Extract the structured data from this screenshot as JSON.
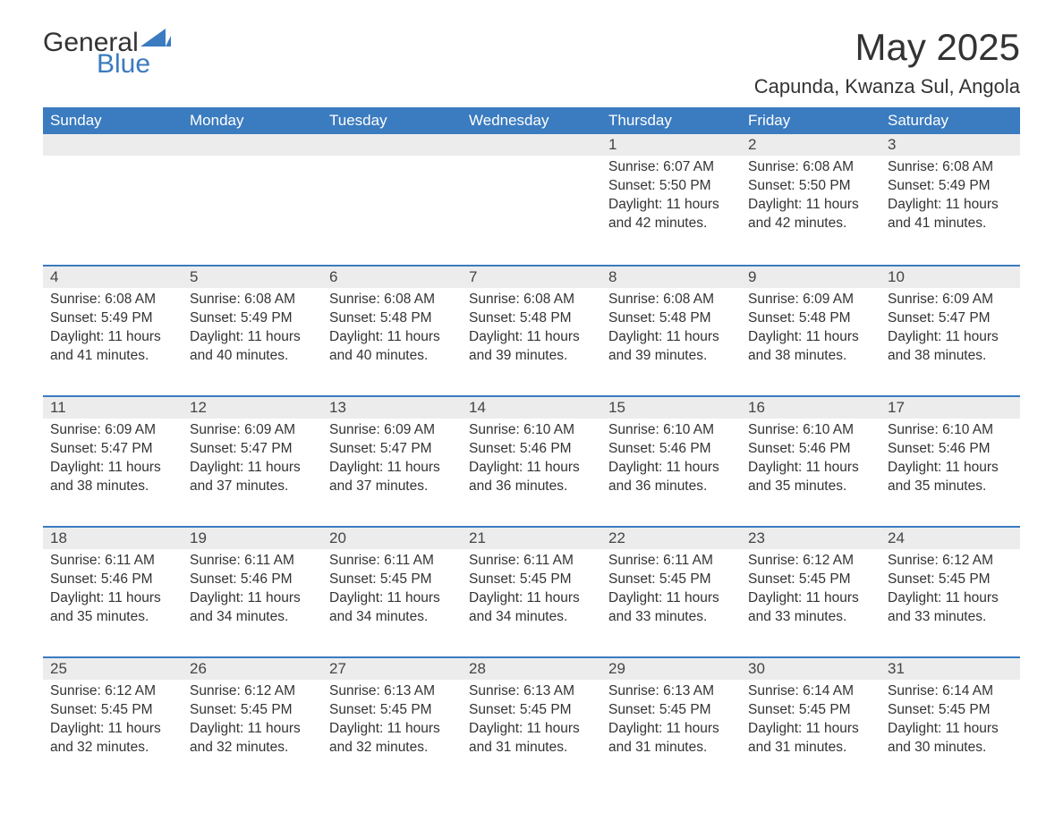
{
  "logo": {
    "text1": "General",
    "text2": "Blue",
    "icon_color": "#3b7bbf"
  },
  "title": "May 2025",
  "subtitle": "Capunda, Kwanza Sul, Angola",
  "colors": {
    "header_bg": "#3b7bbf",
    "header_text": "#ffffff",
    "day_head_bg": "#ececec",
    "day_head_border": "#3b7bbf",
    "body_text": "#333333",
    "background": "#ffffff"
  },
  "typography": {
    "font_family": "Segoe UI, Arial, sans-serif",
    "title_fontsize": 42,
    "subtitle_fontsize": 22,
    "header_fontsize": 17,
    "daynum_fontsize": 17,
    "body_fontsize": 15.5
  },
  "weekdays": [
    "Sunday",
    "Monday",
    "Tuesday",
    "Wednesday",
    "Thursday",
    "Friday",
    "Saturday"
  ],
  "weeks": [
    [
      null,
      null,
      null,
      null,
      {
        "num": "1",
        "sunrise": "6:07 AM",
        "sunset": "5:50 PM",
        "daylight": "11 hours and 42 minutes."
      },
      {
        "num": "2",
        "sunrise": "6:08 AM",
        "sunset": "5:50 PM",
        "daylight": "11 hours and 42 minutes."
      },
      {
        "num": "3",
        "sunrise": "6:08 AM",
        "sunset": "5:49 PM",
        "daylight": "11 hours and 41 minutes."
      }
    ],
    [
      {
        "num": "4",
        "sunrise": "6:08 AM",
        "sunset": "5:49 PM",
        "daylight": "11 hours and 41 minutes."
      },
      {
        "num": "5",
        "sunrise": "6:08 AM",
        "sunset": "5:49 PM",
        "daylight": "11 hours and 40 minutes."
      },
      {
        "num": "6",
        "sunrise": "6:08 AM",
        "sunset": "5:48 PM",
        "daylight": "11 hours and 40 minutes."
      },
      {
        "num": "7",
        "sunrise": "6:08 AM",
        "sunset": "5:48 PM",
        "daylight": "11 hours and 39 minutes."
      },
      {
        "num": "8",
        "sunrise": "6:08 AM",
        "sunset": "5:48 PM",
        "daylight": "11 hours and 39 minutes."
      },
      {
        "num": "9",
        "sunrise": "6:09 AM",
        "sunset": "5:48 PM",
        "daylight": "11 hours and 38 minutes."
      },
      {
        "num": "10",
        "sunrise": "6:09 AM",
        "sunset": "5:47 PM",
        "daylight": "11 hours and 38 minutes."
      }
    ],
    [
      {
        "num": "11",
        "sunrise": "6:09 AM",
        "sunset": "5:47 PM",
        "daylight": "11 hours and 38 minutes."
      },
      {
        "num": "12",
        "sunrise": "6:09 AM",
        "sunset": "5:47 PM",
        "daylight": "11 hours and 37 minutes."
      },
      {
        "num": "13",
        "sunrise": "6:09 AM",
        "sunset": "5:47 PM",
        "daylight": "11 hours and 37 minutes."
      },
      {
        "num": "14",
        "sunrise": "6:10 AM",
        "sunset": "5:46 PM",
        "daylight": "11 hours and 36 minutes."
      },
      {
        "num": "15",
        "sunrise": "6:10 AM",
        "sunset": "5:46 PM",
        "daylight": "11 hours and 36 minutes."
      },
      {
        "num": "16",
        "sunrise": "6:10 AM",
        "sunset": "5:46 PM",
        "daylight": "11 hours and 35 minutes."
      },
      {
        "num": "17",
        "sunrise": "6:10 AM",
        "sunset": "5:46 PM",
        "daylight": "11 hours and 35 minutes."
      }
    ],
    [
      {
        "num": "18",
        "sunrise": "6:11 AM",
        "sunset": "5:46 PM",
        "daylight": "11 hours and 35 minutes."
      },
      {
        "num": "19",
        "sunrise": "6:11 AM",
        "sunset": "5:46 PM",
        "daylight": "11 hours and 34 minutes."
      },
      {
        "num": "20",
        "sunrise": "6:11 AM",
        "sunset": "5:45 PM",
        "daylight": "11 hours and 34 minutes."
      },
      {
        "num": "21",
        "sunrise": "6:11 AM",
        "sunset": "5:45 PM",
        "daylight": "11 hours and 34 minutes."
      },
      {
        "num": "22",
        "sunrise": "6:11 AM",
        "sunset": "5:45 PM",
        "daylight": "11 hours and 33 minutes."
      },
      {
        "num": "23",
        "sunrise": "6:12 AM",
        "sunset": "5:45 PM",
        "daylight": "11 hours and 33 minutes."
      },
      {
        "num": "24",
        "sunrise": "6:12 AM",
        "sunset": "5:45 PM",
        "daylight": "11 hours and 33 minutes."
      }
    ],
    [
      {
        "num": "25",
        "sunrise": "6:12 AM",
        "sunset": "5:45 PM",
        "daylight": "11 hours and 32 minutes."
      },
      {
        "num": "26",
        "sunrise": "6:12 AM",
        "sunset": "5:45 PM",
        "daylight": "11 hours and 32 minutes."
      },
      {
        "num": "27",
        "sunrise": "6:13 AM",
        "sunset": "5:45 PM",
        "daylight": "11 hours and 32 minutes."
      },
      {
        "num": "28",
        "sunrise": "6:13 AM",
        "sunset": "5:45 PM",
        "daylight": "11 hours and 31 minutes."
      },
      {
        "num": "29",
        "sunrise": "6:13 AM",
        "sunset": "5:45 PM",
        "daylight": "11 hours and 31 minutes."
      },
      {
        "num": "30",
        "sunrise": "6:14 AM",
        "sunset": "5:45 PM",
        "daylight": "11 hours and 31 minutes."
      },
      {
        "num": "31",
        "sunrise": "6:14 AM",
        "sunset": "5:45 PM",
        "daylight": "11 hours and 30 minutes."
      }
    ]
  ],
  "labels": {
    "sunrise": "Sunrise:",
    "sunset": "Sunset:",
    "daylight": "Daylight:"
  }
}
